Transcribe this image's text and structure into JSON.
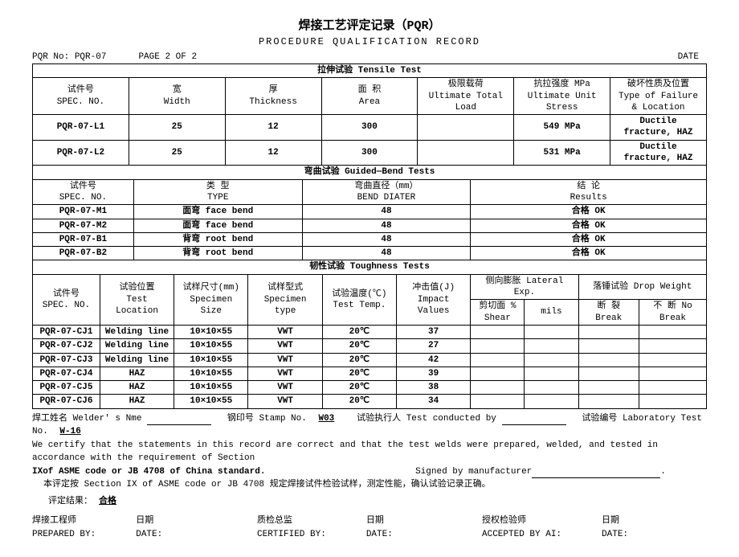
{
  "header": {
    "title_cn": "焊接工艺评定记录（PQR）",
    "title_en": "PROCEDURE  QUALIFICATION  RECORD",
    "pqr_no_label": "PQR No:",
    "pqr_no": "PQR-07",
    "page_label": "PAGE  2  OF  2",
    "date_label": "DATE"
  },
  "tensile": {
    "section": "拉伸试验 Tensile Test",
    "cols": {
      "spec_cn": "试件号",
      "spec_en": "SPEC. NO.",
      "width_cn": "宽",
      "width_en": "Width",
      "thick_cn": "厚",
      "thick_en": "Thickness",
      "area_cn": "面 积",
      "area_en": "Area",
      "load_cn": "极限载荷",
      "load_en": "Ultimate Total Load",
      "stress_cn": "抗拉强度 MPa",
      "stress_en": "Ultimate Unit Stress",
      "fail_cn": "破坏性质及位置",
      "fail_en": "Type of Failure & Location"
    },
    "rows": [
      {
        "spec": "PQR-07-L1",
        "w": "25",
        "t": "12",
        "a": "300",
        "load": "",
        "stress": "549 MPa",
        "fail": "Ductile fracture, HAZ"
      },
      {
        "spec": "PQR-07-L2",
        "w": "25",
        "t": "12",
        "a": "300",
        "load": "",
        "stress": "531 MPa",
        "fail": "Ductile fracture, HAZ"
      }
    ]
  },
  "bend": {
    "section": "弯曲试验 Guided—Bend Tests",
    "cols": {
      "spec_cn": "试件号",
      "spec_en": "SPEC. NO.",
      "type_cn": "类  型",
      "type_en": "TYPE",
      "dia_cn": "弯曲直径（mm）",
      "dia_en": "BEND DIATER",
      "res_cn": "结  论",
      "res_en": "Results"
    },
    "rows": [
      {
        "spec": "PQR-07-M1",
        "type": "面弯 face bend",
        "dia": "48",
        "res": "合格 OK"
      },
      {
        "spec": "PQR-07-M2",
        "type": "面弯 face bend",
        "dia": "48",
        "res": "合格 OK"
      },
      {
        "spec": "PQR-07-B1",
        "type": "背弯 root bend",
        "dia": "48",
        "res": "合格 OK"
      },
      {
        "spec": "PQR-07-B2",
        "type": "背弯 root bend",
        "dia": "48",
        "res": "合格 OK"
      }
    ]
  },
  "tough": {
    "section": "韧性试验 Toughness Tests",
    "cols": {
      "spec_cn": "试件号",
      "spec_en": "SPEC. NO.",
      "loc_cn": "试验位置",
      "loc_en": "Test Location",
      "size_cn": "试样尺寸(mm)",
      "size_en": "Specimen Size",
      "stype_cn": "试样型式",
      "stype_en": "Specimen type",
      "temp_cn": "试验温度(℃)",
      "temp_en": "Test Temp.",
      "impact_cn": "冲击值(J)",
      "impact_en": "Impact Values",
      "lat_cn": "侧向膨胀 Lateral Exp.",
      "shear_cn": "剪切面 %",
      "shear_en": "Shear",
      "mils": "mils",
      "drop_cn": "落锤试验 Drop Weight",
      "break_cn": "断 裂 Break",
      "nobreak_cn": "不  断 No",
      "nobreak_en": "Break"
    },
    "rows": [
      {
        "spec": "PQR-07-CJ1",
        "loc": "Welding line",
        "size": "10×10×55",
        "stype": "VWT",
        "temp": "20℃",
        "impact": "37"
      },
      {
        "spec": "PQR-07-CJ2",
        "loc": "Welding line",
        "size": "10×10×55",
        "stype": "VWT",
        "temp": "20℃",
        "impact": "27"
      },
      {
        "spec": "PQR-07-CJ3",
        "loc": "Welding line",
        "size": "10×10×55",
        "stype": "VWT",
        "temp": "20℃",
        "impact": "42"
      },
      {
        "spec": "PQR-07-CJ4",
        "loc": "HAZ",
        "size": "10×10×55",
        "stype": "VWT",
        "temp": "20℃",
        "impact": "39"
      },
      {
        "spec": "PQR-07-CJ5",
        "loc": "HAZ",
        "size": "10×10×55",
        "stype": "VWT",
        "temp": "20℃",
        "impact": "38"
      },
      {
        "spec": "PQR-07-CJ6",
        "loc": "HAZ",
        "size": "10×10×55",
        "stype": "VWT",
        "temp": "20℃",
        "impact": "34"
      }
    ]
  },
  "footer": {
    "line1_a": "焊工姓名 Welder' s Nme",
    "line1_b": "钢印号 Stamp No.",
    "stamp": "W03",
    "line1_c": "试验执行人 Test conducted by",
    "line1_d": "试验编号 Laboratory Test No.",
    "testno": "W-16",
    "cert": "We certify that the statements in this record are correct and that the test welds were prepared, welded, and tested in accordance with the requirement of Section",
    "cert2": "IXof ASME code or JB 4708 of China standard.",
    "signed": "Signed by manufacturer",
    "note": "本评定按 Section IX of ASME code or JB 4708 规定焊接试件检验试样，测定性能，确认试验记录正确。",
    "result_lbl": "评定结果：",
    "result_val": "合格"
  },
  "sig": {
    "eng_cn": "焊接工程师",
    "eng_en": "PREPARED BY:",
    "date_cn": "日期",
    "date_en": "DATE:",
    "qc_cn": "质检总监",
    "qc_en": "CERTIFIED BY:",
    "ai_cn": "授权检验师",
    "ai_en": "ACCEPTED BY AI:"
  }
}
